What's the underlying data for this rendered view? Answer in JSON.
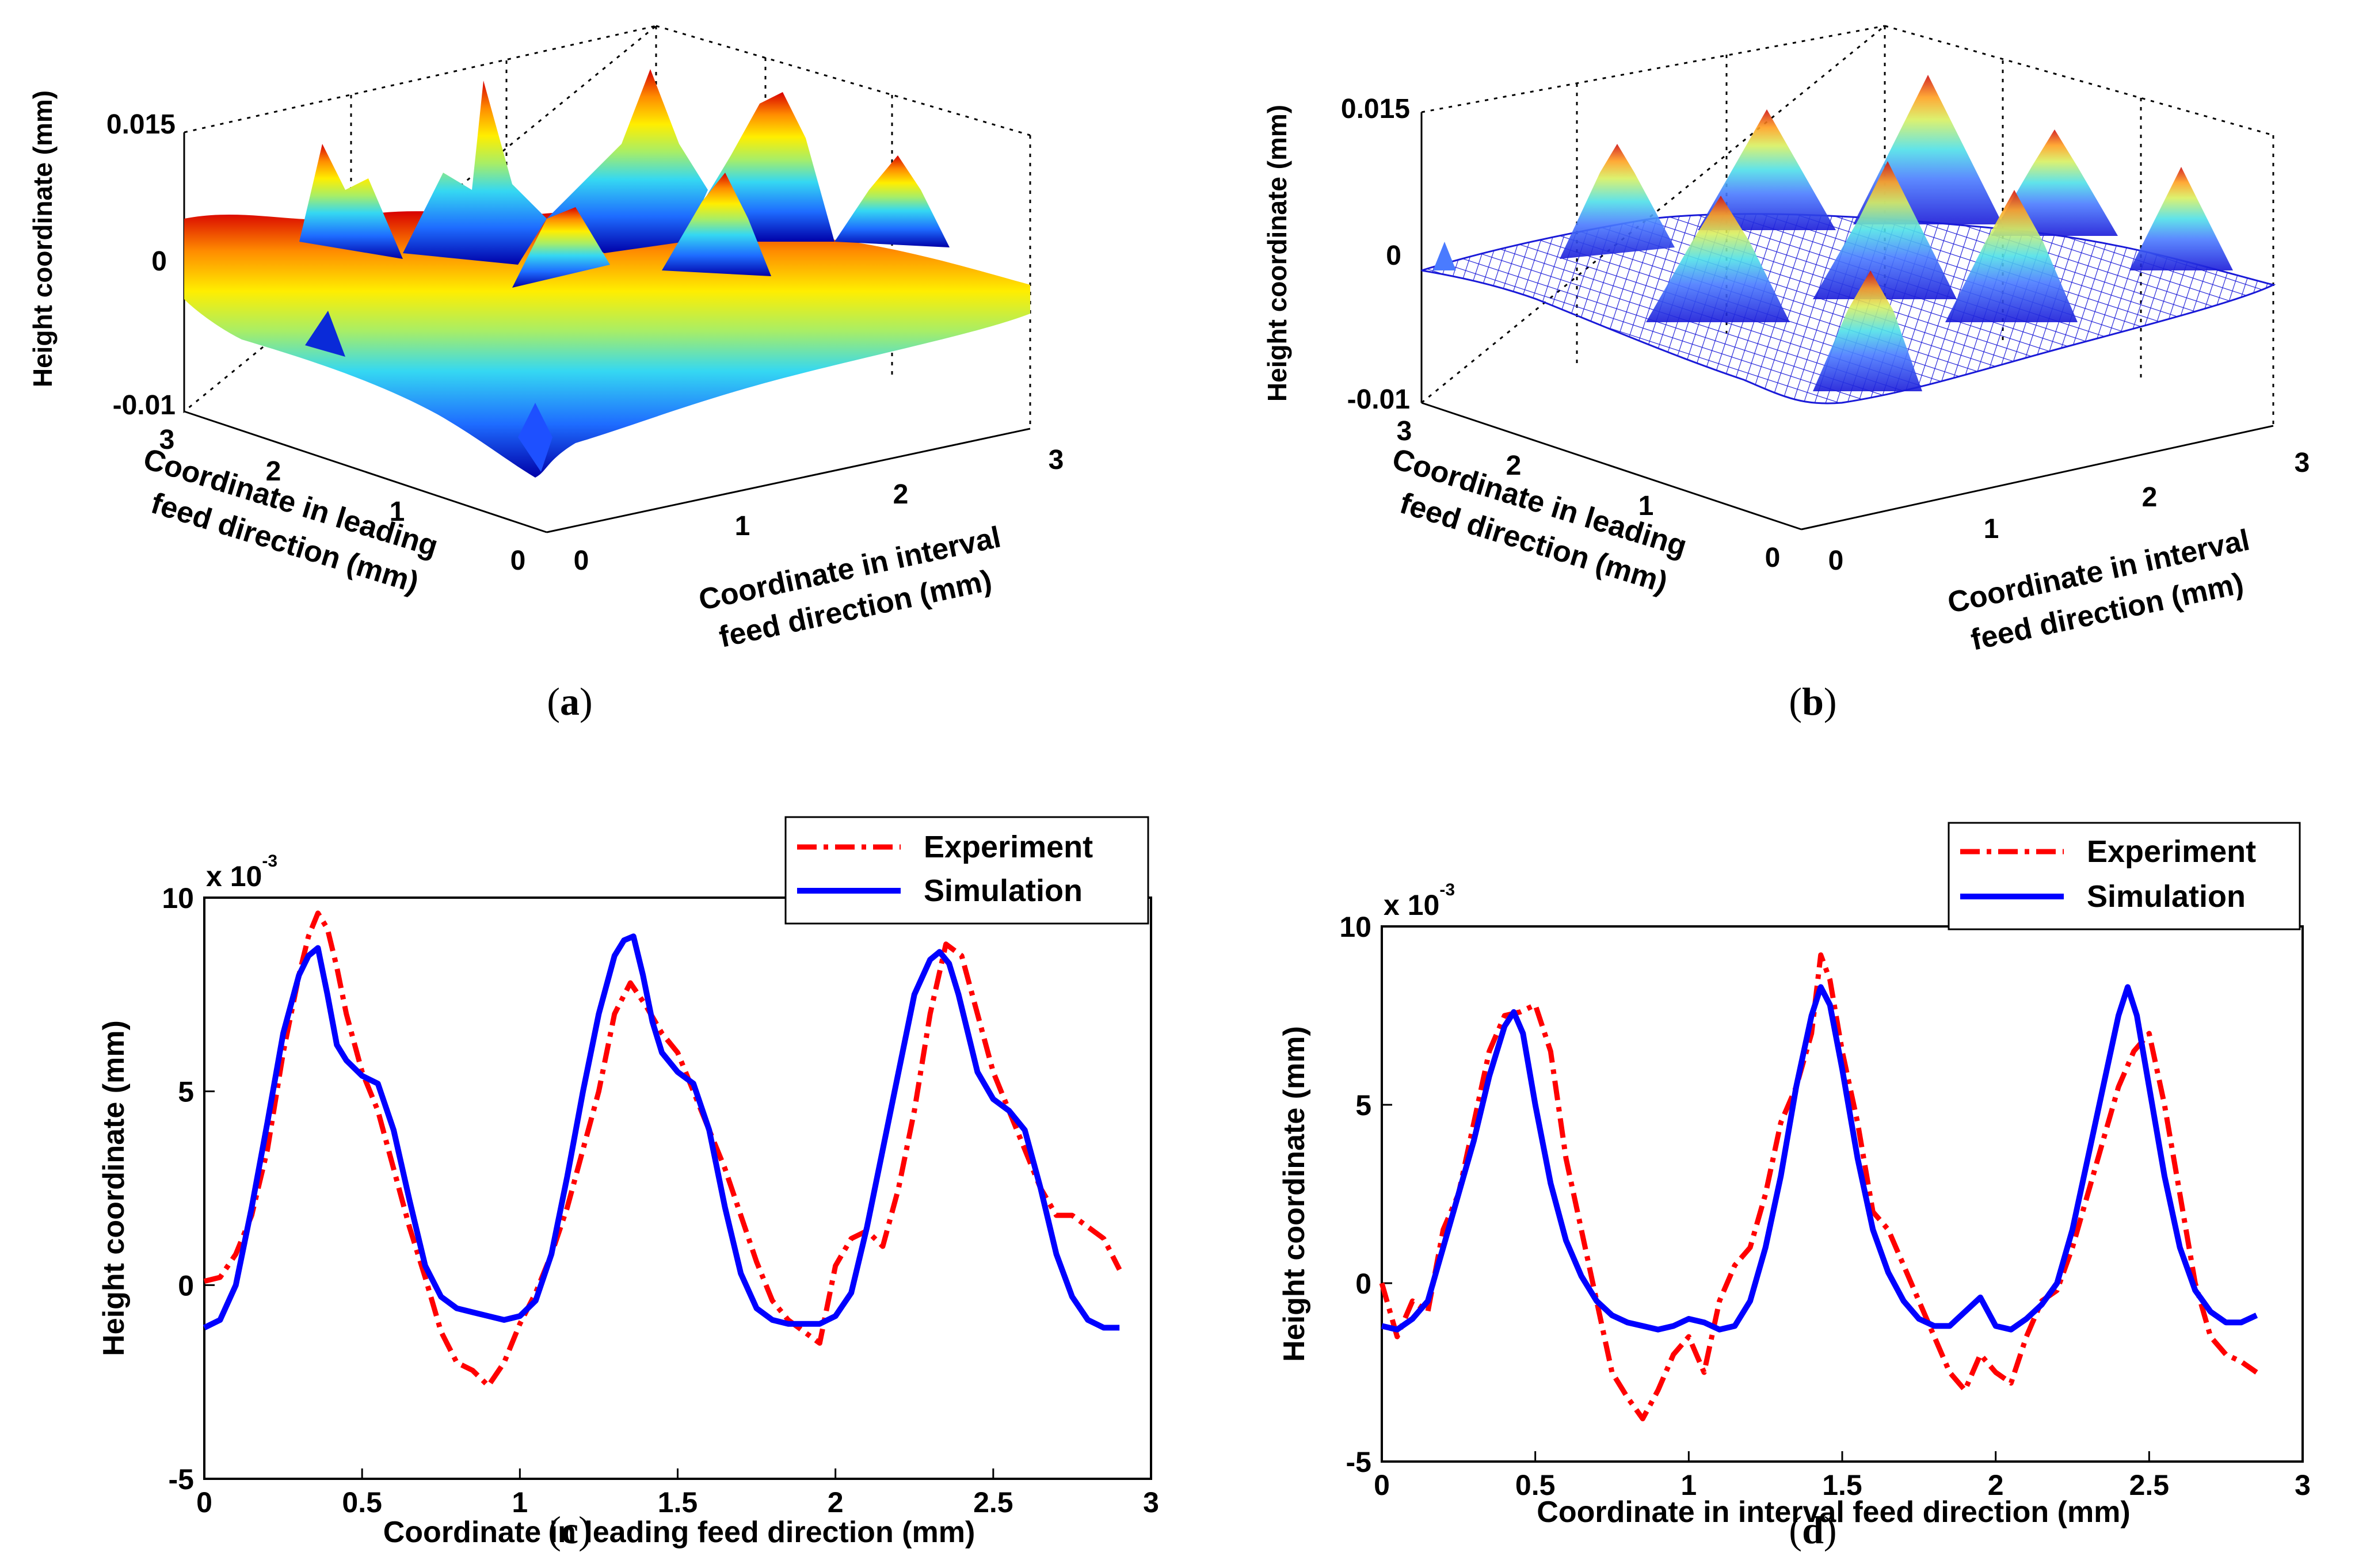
{
  "panels": {
    "a": {
      "caption": "a",
      "type": "surface3d",
      "render": "filled",
      "zlabel": "Height coordinate (mm)",
      "xlabel_line1": "Coordinate in leading",
      "xlabel_line2": "feed direction (mm)",
      "ylabel_line1": "Coordinate in interval",
      "ylabel_line2": "feed direction (mm)",
      "zticks": [
        "0.015",
        "0",
        "-0.01"
      ],
      "xticks": [
        "3",
        "2",
        "1",
        "0"
      ],
      "yticks": [
        "0",
        "1",
        "2",
        "3"
      ],
      "zlim": [
        -0.01,
        0.015
      ]
    },
    "b": {
      "caption": "b",
      "type": "surface3d",
      "render": "mesh",
      "zlabel": "Height coordinate (mm)",
      "xlabel_line1": "Coordinate in leading",
      "xlabel_line2": "feed direction (mm)",
      "ylabel_line1": "Coordinate in interval",
      "ylabel_line2": "feed direction (mm)",
      "zticks": [
        "0.015",
        "0",
        "-0.01"
      ],
      "xticks": [
        "3",
        "2",
        "1",
        "0"
      ],
      "yticks": [
        "0",
        "1",
        "2",
        "3"
      ],
      "zlim": [
        -0.01,
        0.015
      ]
    },
    "c": {
      "caption": "c",
      "ylabel": "Height coordinate (mm)",
      "xlabel": "Coordinate in leading  feed direction (mm)",
      "exponent_base": "x 10",
      "exponent_power": "-3"
    },
    "d": {
      "caption": "d",
      "ylabel": "Height coordinate (mm)",
      "xlabel": "Coordinate in interval  feed direction (mm)",
      "exponent_base": "x 10",
      "exponent_power": "-3"
    }
  },
  "colors": {
    "experiment": "#ff0000",
    "simulation": "#0000ff",
    "axes": "#000000"
  },
  "chart_data": [
    {
      "id": "c",
      "type": "line",
      "title": "",
      "xlabel": "Coordinate in leading  feed direction (mm)",
      "ylabel": "Height coordinate (mm)",
      "xlim": [
        0,
        3
      ],
      "ylim": [
        -5,
        10
      ],
      "xticks": [
        0,
        0.5,
        1,
        1.5,
        2,
        2.5,
        3
      ],
      "xtick_labels": [
        "0",
        "0.5",
        "1",
        "1.5",
        "2",
        "2.5",
        "3"
      ],
      "yticks": [
        -5,
        0,
        5,
        10
      ],
      "ytick_labels": [
        "-5",
        "0",
        "5",
        "10"
      ],
      "y_scale_note": "x 10^-3",
      "legend": "top-right",
      "series": [
        {
          "name": "Experiment",
          "style": "dash-dot",
          "x": [
            0,
            0.05,
            0.1,
            0.15,
            0.2,
            0.25,
            0.3,
            0.33,
            0.36,
            0.39,
            0.42,
            0.45,
            0.5,
            0.55,
            0.6,
            0.65,
            0.7,
            0.75,
            0.8,
            0.85,
            0.9,
            0.95,
            1.0,
            1.05,
            1.1,
            1.15,
            1.2,
            1.25,
            1.3,
            1.35,
            1.4,
            1.45,
            1.5,
            1.55,
            1.6,
            1.65,
            1.7,
            1.75,
            1.8,
            1.85,
            1.9,
            1.95,
            2.0,
            2.05,
            2.1,
            2.15,
            2.2,
            2.25,
            2.3,
            2.35,
            2.4,
            2.45,
            2.5,
            2.55,
            2.6,
            2.65,
            2.7,
            2.75,
            2.8,
            2.85,
            2.9
          ],
          "y": [
            0.1,
            0.2,
            0.8,
            1.8,
            3.5,
            6.0,
            8.0,
            9.0,
            9.6,
            9.2,
            8.2,
            7.0,
            5.5,
            4.5,
            3.0,
            1.5,
            0.2,
            -1.2,
            -2.0,
            -2.2,
            -2.6,
            -2.0,
            -1.0,
            -0.2,
            0.8,
            2.0,
            3.5,
            5.0,
            7.0,
            7.8,
            7.2,
            6.5,
            6.0,
            5.0,
            4.0,
            3.0,
            1.8,
            0.6,
            -0.4,
            -0.9,
            -1.2,
            -1.5,
            0.5,
            1.2,
            1.4,
            1.0,
            2.5,
            4.5,
            7.0,
            8.8,
            8.5,
            7.0,
            5.5,
            4.5,
            3.5,
            2.5,
            1.8,
            1.8,
            1.5,
            1.2,
            0.4
          ]
        },
        {
          "name": "Simulation",
          "style": "solid",
          "x": [
            0,
            0.05,
            0.1,
            0.15,
            0.2,
            0.25,
            0.3,
            0.33,
            0.36,
            0.39,
            0.42,
            0.45,
            0.5,
            0.55,
            0.6,
            0.65,
            0.7,
            0.75,
            0.8,
            0.85,
            0.9,
            0.95,
            1.0,
            1.05,
            1.1,
            1.15,
            1.2,
            1.25,
            1.3,
            1.33,
            1.36,
            1.39,
            1.42,
            1.45,
            1.5,
            1.55,
            1.6,
            1.65,
            1.7,
            1.75,
            1.8,
            1.85,
            1.9,
            1.95,
            2.0,
            2.05,
            2.1,
            2.15,
            2.2,
            2.25,
            2.3,
            2.33,
            2.36,
            2.39,
            2.42,
            2.45,
            2.5,
            2.55,
            2.6,
            2.65,
            2.7,
            2.75,
            2.8,
            2.85,
            2.9
          ],
          "y": [
            -1.1,
            -0.9,
            0.0,
            2.0,
            4.2,
            6.5,
            8.0,
            8.5,
            8.7,
            7.5,
            6.2,
            5.8,
            5.4,
            5.2,
            4.0,
            2.2,
            0.5,
            -0.3,
            -0.6,
            -0.7,
            -0.8,
            -0.9,
            -0.8,
            -0.4,
            0.8,
            2.8,
            5.0,
            7.0,
            8.5,
            8.9,
            9.0,
            8.0,
            6.8,
            6.0,
            5.5,
            5.2,
            4.0,
            2.0,
            0.3,
            -0.6,
            -0.9,
            -1.0,
            -1.0,
            -1.0,
            -0.8,
            -0.2,
            1.5,
            3.5,
            5.5,
            7.5,
            8.4,
            8.6,
            8.3,
            7.5,
            6.5,
            5.5,
            4.8,
            4.5,
            4.0,
            2.5,
            0.8,
            -0.3,
            -0.9,
            -1.1,
            -1.1
          ]
        }
      ]
    },
    {
      "id": "d",
      "type": "line",
      "title": "",
      "xlabel": "Coordinate in interval  feed direction (mm)",
      "ylabel": "Height coordinate (mm)",
      "xlim": [
        0,
        3
      ],
      "ylim": [
        -5,
        10
      ],
      "xticks": [
        0,
        0.5,
        1,
        1.5,
        2,
        2.5,
        3
      ],
      "xtick_labels": [
        "0",
        "0.5",
        "1",
        "1.5",
        "2",
        "2.5",
        "3"
      ],
      "yticks": [
        -5,
        0,
        5,
        10
      ],
      "ytick_labels": [
        "-5",
        "0",
        "5",
        "10"
      ],
      "y_scale_note": "x 10^-3",
      "legend": "top-right",
      "series": [
        {
          "name": "Experiment",
          "style": "dash-dot",
          "x": [
            0,
            0.05,
            0.1,
            0.15,
            0.2,
            0.25,
            0.3,
            0.35,
            0.4,
            0.45,
            0.5,
            0.55,
            0.6,
            0.65,
            0.7,
            0.75,
            0.8,
            0.85,
            0.9,
            0.95,
            1.0,
            1.05,
            1.1,
            1.15,
            1.2,
            1.25,
            1.3,
            1.35,
            1.4,
            1.43,
            1.46,
            1.5,
            1.55,
            1.6,
            1.65,
            1.7,
            1.75,
            1.8,
            1.85,
            1.9,
            1.95,
            2.0,
            2.05,
            2.1,
            2.15,
            2.2,
            2.25,
            2.3,
            2.35,
            2.4,
            2.45,
            2.5,
            2.55,
            2.6,
            2.65,
            2.7,
            2.75,
            2.8,
            2.85
          ],
          "y": [
            0.0,
            -1.5,
            -0.5,
            -0.8,
            1.5,
            2.5,
            4.5,
            6.5,
            7.5,
            7.6,
            7.8,
            6.5,
            3.5,
            1.5,
            -0.5,
            -2.5,
            -3.2,
            -3.8,
            -3.0,
            -2.0,
            -1.5,
            -2.5,
            -0.5,
            0.5,
            1.0,
            2.5,
            4.5,
            5.5,
            7.0,
            9.2,
            8.5,
            6.5,
            4.5,
            2.0,
            1.5,
            0.5,
            -0.5,
            -1.5,
            -2.5,
            -3.0,
            -2.0,
            -2.5,
            -2.8,
            -1.5,
            -0.5,
            -0.2,
            1.0,
            2.5,
            4.0,
            5.5,
            6.5,
            7.0,
            5.0,
            2.5,
            0.0,
            -1.5,
            -2.0,
            -2.2,
            -2.5
          ]
        },
        {
          "name": "Simulation",
          "style": "solid",
          "x": [
            0,
            0.05,
            0.1,
            0.15,
            0.2,
            0.25,
            0.3,
            0.35,
            0.4,
            0.43,
            0.46,
            0.5,
            0.55,
            0.6,
            0.65,
            0.7,
            0.75,
            0.8,
            0.85,
            0.9,
            0.95,
            1.0,
            1.05,
            1.1,
            1.15,
            1.2,
            1.25,
            1.3,
            1.35,
            1.4,
            1.43,
            1.46,
            1.5,
            1.55,
            1.6,
            1.65,
            1.7,
            1.75,
            1.8,
            1.85,
            1.9,
            1.95,
            2.0,
            2.05,
            2.1,
            2.15,
            2.2,
            2.25,
            2.3,
            2.35,
            2.4,
            2.43,
            2.46,
            2.5,
            2.55,
            2.6,
            2.65,
            2.7,
            2.75,
            2.8,
            2.85
          ],
          "y": [
            -1.2,
            -1.3,
            -1.0,
            -0.5,
            1.0,
            2.5,
            4.0,
            5.8,
            7.2,
            7.6,
            7.0,
            5.0,
            2.8,
            1.2,
            0.2,
            -0.5,
            -0.9,
            -1.1,
            -1.2,
            -1.3,
            -1.2,
            -1.0,
            -1.1,
            -1.3,
            -1.2,
            -0.5,
            1.0,
            3.0,
            5.5,
            7.5,
            8.3,
            7.8,
            6.0,
            3.5,
            1.5,
            0.3,
            -0.5,
            -1.0,
            -1.2,
            -1.2,
            -0.8,
            -0.4,
            -1.2,
            -1.3,
            -1.0,
            -0.6,
            0.0,
            1.5,
            3.5,
            5.5,
            7.5,
            8.3,
            7.5,
            5.5,
            3.0,
            1.0,
            -0.2,
            -0.8,
            -1.1,
            -1.1,
            -0.9
          ]
        }
      ]
    }
  ]
}
